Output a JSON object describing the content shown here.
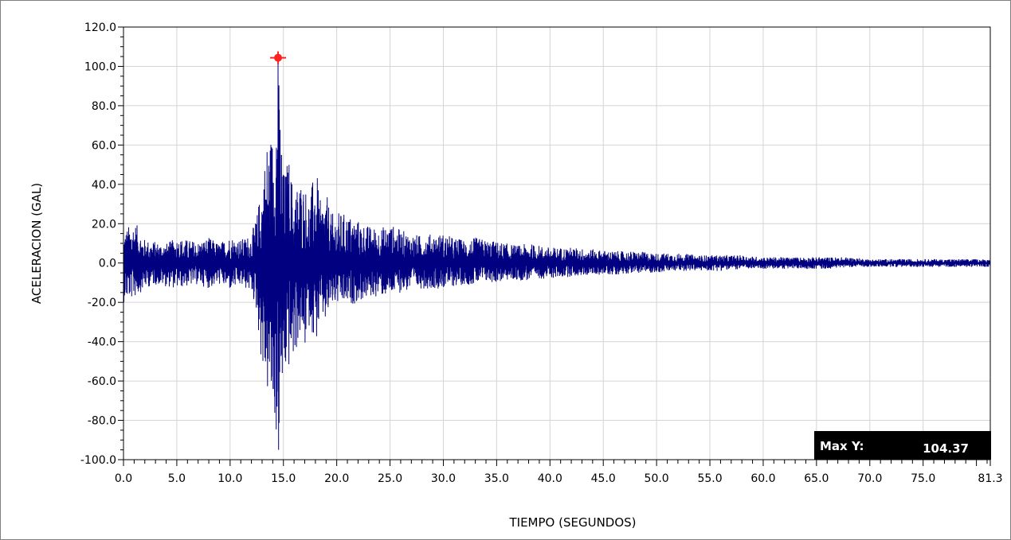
{
  "chart_data": {
    "type": "line",
    "title": "",
    "xlabel": "TIEMPO (SEGUNDOS)",
    "ylabel": "ACELERACION (GAL)",
    "xlim": [
      0,
      81.3
    ],
    "ylim": [
      -100,
      120
    ],
    "x_ticks": [
      "0.0",
      "5.0",
      "10.0",
      "15.0",
      "20.0",
      "25.0",
      "30.0",
      "35.0",
      "40.0",
      "45.0",
      "50.0",
      "55.0",
      "60.0",
      "65.0",
      "70.0",
      "75.0",
      "81.3"
    ],
    "x_tick_values": [
      0,
      5,
      10,
      15,
      20,
      25,
      30,
      35,
      40,
      45,
      50,
      55,
      60,
      65,
      70,
      75,
      81.3
    ],
    "y_ticks": [
      "120.0",
      "100.0",
      "80.0",
      "60.0",
      "40.0",
      "20.0",
      "0.0",
      "-20.0",
      "-40.0",
      "-60.0",
      "-80.0",
      "-100.0"
    ],
    "y_tick_values": [
      120,
      100,
      80,
      60,
      40,
      20,
      0,
      -20,
      -40,
      -60,
      -80,
      -100
    ],
    "grid": true,
    "series": [
      {
        "color": "#000080",
        "envelope": {
          "x": [
            0,
            1,
            2,
            3,
            4,
            5,
            6,
            7,
            8,
            9,
            10,
            11,
            12,
            12.5,
            13,
            13.5,
            14,
            14.5,
            15,
            15.5,
            16,
            16.5,
            17,
            17.5,
            18,
            18.5,
            19,
            19.5,
            20,
            21,
            22,
            23,
            24,
            25,
            26,
            27,
            28,
            29,
            30,
            31,
            32,
            33,
            34,
            35,
            36,
            37,
            38,
            39,
            40,
            42,
            44,
            46,
            48,
            50,
            52,
            54,
            56,
            58,
            60,
            62,
            64,
            66,
            68,
            70,
            72,
            74,
            76,
            78,
            80,
            81.3
          ],
          "upper": [
            16,
            22,
            12,
            11,
            10,
            13,
            12,
            11,
            13,
            10,
            14,
            12,
            15,
            24,
            42,
            65,
            68,
            104,
            46,
            55,
            36,
            44,
            40,
            33,
            52,
            30,
            36,
            25,
            26,
            25,
            22,
            19,
            18,
            20,
            17,
            15,
            14,
            15,
            15,
            13,
            12,
            13,
            12,
            11,
            10,
            9,
            10,
            9,
            8,
            8,
            7,
            6,
            6,
            5,
            5,
            4,
            4,
            4,
            3,
            3,
            3,
            3,
            3,
            2,
            2,
            2,
            2,
            2,
            2,
            2
          ],
          "lower": [
            -20,
            -18,
            -13,
            -11,
            -12,
            -13,
            -12,
            -11,
            -13,
            -11,
            -14,
            -12,
            -15,
            -26,
            -55,
            -68,
            -80,
            -95,
            -62,
            -55,
            -50,
            -38,
            -45,
            -30,
            -43,
            -28,
            -32,
            -22,
            -22,
            -22,
            -20,
            -18,
            -17,
            -17,
            -15,
            -14,
            -13,
            -13,
            -13,
            -12,
            -11,
            -11,
            -10,
            -10,
            -9,
            -9,
            -9,
            -8,
            -8,
            -7,
            -6,
            -6,
            -5,
            -5,
            -4,
            -4,
            -4,
            -3,
            -3,
            -3,
            -3,
            -3,
            -2,
            -2,
            -2,
            -2,
            -2,
            -2,
            -2,
            -2
          ]
        }
      }
    ],
    "peak": {
      "x": 14.5,
      "y": 104.37,
      "color": "#ff2020"
    },
    "annotation": {
      "label": "Max Y:",
      "value": "104.37"
    }
  }
}
